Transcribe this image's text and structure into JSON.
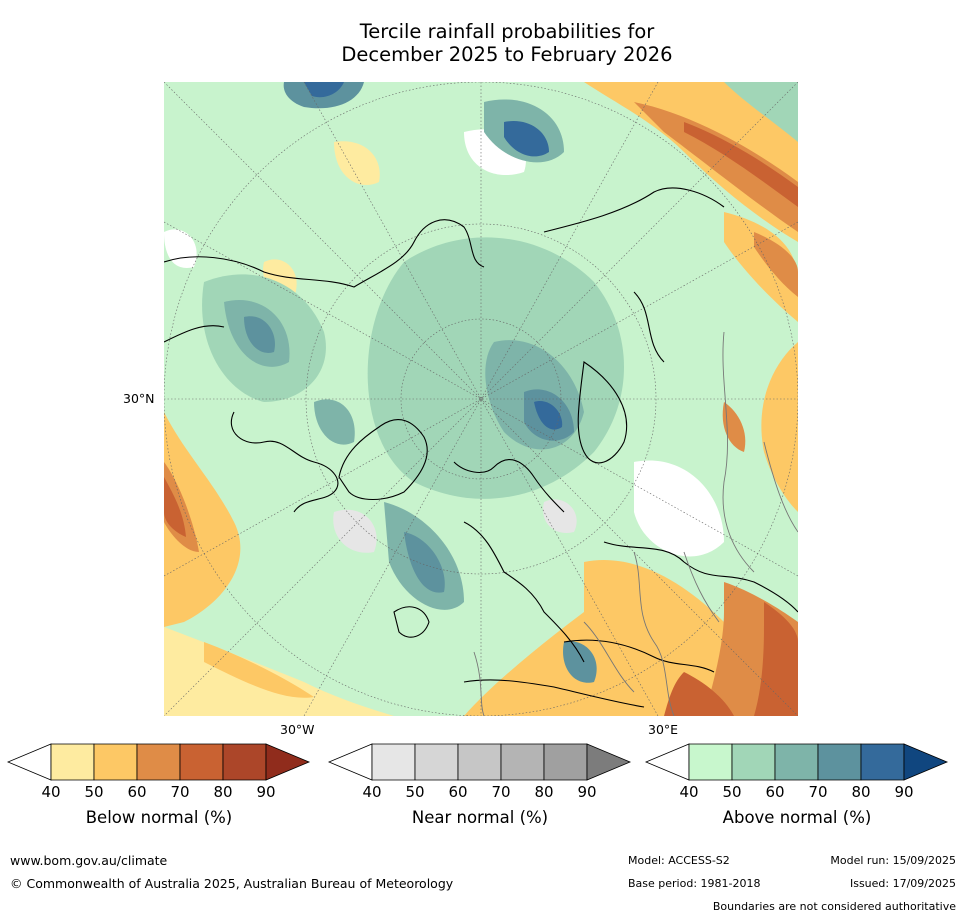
{
  "title": {
    "line1": "Tercile rainfall probabilities for",
    "line2": "December 2025 to February 2026"
  },
  "map": {
    "projection": "north-polar-stereographic",
    "lat_label": "30°N",
    "lon_labels": [
      "30°W",
      "30°E"
    ]
  },
  "colorbars": [
    {
      "label": "Below normal (%)",
      "ticks": [
        "40",
        "50",
        "60",
        "70",
        "80",
        "90"
      ],
      "colors": [
        "#ffffff",
        "#feeba0",
        "#fdc865",
        "#df8c47",
        "#c96232",
        "#ac4629",
        "#902c1c"
      ]
    },
    {
      "label": "Near normal (%)",
      "ticks": [
        "40",
        "50",
        "60",
        "70",
        "80",
        "90"
      ],
      "colors": [
        "#ffffff",
        "#e6e6e6",
        "#d6d6d6",
        "#c6c6c6",
        "#b4b4b4",
        "#a0a0a0",
        "#7c7c7c"
      ]
    },
    {
      "label": "Above normal (%)",
      "ticks": [
        "40",
        "50",
        "60",
        "70",
        "80",
        "90"
      ],
      "colors": [
        "#ffffff",
        "#c8f7cd",
        "#a1d6b7",
        "#7eb4a9",
        "#5d929e",
        "#346a9b",
        "#10467f"
      ]
    }
  ],
  "footer": {
    "url": "www.bom.gov.au/climate",
    "copyright": "© Commonwealth of Australia 2025, Australian Bureau of Meteorology",
    "model": "Model: ACCESS-S2",
    "base_period": "Base period: 1981-2018",
    "model_run": "Model run: 15/09/2025",
    "issued": "Issued: 17/09/2025",
    "boundaries_note": "Boundaries are not considered authoritative"
  }
}
